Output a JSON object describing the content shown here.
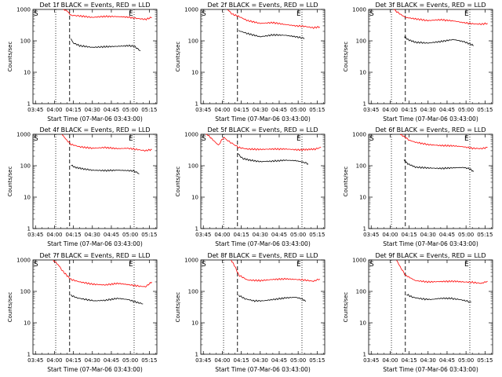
{
  "figure": {
    "background": "#ffffff"
  },
  "chart_data": [
    {
      "type": "line",
      "title": "Det 1f BLACK = Events, RED = LLD",
      "xlabel": "Start Time (07-Mar-06 03:43:00)",
      "ylabel": "Counts/sec",
      "yscale": "log",
      "ylim": [
        1,
        1000
      ],
      "x_ticks": [
        "03:45",
        "04:00",
        "04:15",
        "04:30",
        "04:45",
        "05:00",
        "05:15"
      ],
      "y_ticks": [
        "1",
        "10",
        "100",
        "1000"
      ],
      "markers": {
        "S": "S",
        "E": "E"
      },
      "series": [
        {
          "name": "LLD",
          "color": "#ff0000",
          "points": [
            [
              "04:07",
              1000
            ],
            [
              "04:10",
              900
            ],
            [
              "04:13",
              650
            ],
            [
              "04:20",
              620
            ],
            [
              "04:30",
              560
            ],
            [
              "04:40",
              600
            ],
            [
              "04:50",
              590
            ],
            [
              "04:58",
              570
            ],
            [
              "05:05",
              520
            ],
            [
              "05:12",
              480
            ],
            [
              "05:17",
              560
            ]
          ]
        },
        {
          "name": "Events",
          "color": "#000000",
          "points": [
            [
              "04:13",
              115
            ],
            [
              "04:15",
              85
            ],
            [
              "04:20",
              70
            ],
            [
              "04:30",
              62
            ],
            [
              "04:40",
              65
            ],
            [
              "04:50",
              67
            ],
            [
              "04:58",
              70
            ],
            [
              "05:03",
              68
            ],
            [
              "05:08",
              48
            ]
          ]
        }
      ]
    },
    {
      "type": "line",
      "title": "Det 2f BLACK = Events, RED = LLD",
      "xlabel": "Start Time (07-Mar-06 03:43:00)",
      "ylabel": "Counts/sec",
      "yscale": "log",
      "ylim": [
        1,
        1000
      ],
      "x_ticks": [
        "03:45",
        "04:00",
        "04:15",
        "04:30",
        "04:45",
        "05:00",
        "05:15"
      ],
      "y_ticks": [
        "1",
        "10",
        "100",
        "1000"
      ],
      "markers": {
        "S": "S",
        "E": "E"
      },
      "series": [
        {
          "name": "LLD",
          "color": "#ff0000",
          "points": [
            [
              "04:04",
              1000
            ],
            [
              "04:08",
              700
            ],
            [
              "04:13",
              600
            ],
            [
              "04:20",
              440
            ],
            [
              "04:30",
              360
            ],
            [
              "04:40",
              380
            ],
            [
              "04:50",
              330
            ],
            [
              "04:58",
              300
            ],
            [
              "05:05",
              290
            ],
            [
              "05:12",
              260
            ],
            [
              "05:17",
              280
            ]
          ]
        },
        {
          "name": "Events",
          "color": "#000000",
          "points": [
            [
              "04:13",
              210
            ],
            [
              "04:20",
              170
            ],
            [
              "04:30",
              135
            ],
            [
              "04:40",
              155
            ],
            [
              "04:50",
              150
            ],
            [
              "04:58",
              135
            ],
            [
              "05:05",
              120
            ]
          ]
        }
      ]
    },
    {
      "type": "line",
      "title": "Det 3f BLACK = Events, RED = LLD",
      "xlabel": "Start Time (07-Mar-06 03:43:00)",
      "ylabel": "Counts/sec",
      "yscale": "log",
      "ylim": [
        1,
        1000
      ],
      "x_ticks": [
        "03:45",
        "04:00",
        "04:15",
        "04:30",
        "04:45",
        "05:00",
        "05:15"
      ],
      "y_ticks": [
        "1",
        "10",
        "100",
        "1000"
      ],
      "markers": {
        "S": "S",
        "E": "E"
      },
      "series": [
        {
          "name": "LLD",
          "color": "#ff0000",
          "points": [
            [
              "04:03",
              1000
            ],
            [
              "04:07",
              750
            ],
            [
              "04:12",
              560
            ],
            [
              "04:20",
              500
            ],
            [
              "04:30",
              440
            ],
            [
              "04:40",
              470
            ],
            [
              "04:50",
              430
            ],
            [
              "04:58",
              380
            ],
            [
              "05:05",
              350
            ],
            [
              "05:12",
              340
            ],
            [
              "05:17",
              360
            ]
          ]
        },
        {
          "name": "Events",
          "color": "#000000",
          "points": [
            [
              "04:11",
              140
            ],
            [
              "04:14",
              110
            ],
            [
              "04:20",
              90
            ],
            [
              "04:30",
              85
            ],
            [
              "04:40",
              95
            ],
            [
              "04:50",
              110
            ],
            [
              "04:58",
              95
            ],
            [
              "05:03",
              80
            ],
            [
              "05:06",
              70
            ]
          ]
        }
      ]
    },
    {
      "type": "line",
      "title": "Det 4f BLACK = Events, RED = LLD",
      "xlabel": "Start Time (07-Mar-06 03:43:00)",
      "ylabel": "Counts/sec",
      "yscale": "log",
      "ylim": [
        1,
        1000
      ],
      "x_ticks": [
        "03:45",
        "04:00",
        "04:15",
        "04:30",
        "04:45",
        "05:00",
        "05:15"
      ],
      "y_ticks": [
        "1",
        "10",
        "100",
        "1000"
      ],
      "markers": {
        "S": "S",
        "E": "E"
      },
      "series": [
        {
          "name": "LLD",
          "color": "#ff0000",
          "points": [
            [
              "04:06",
              1000
            ],
            [
              "04:09",
              700
            ],
            [
              "04:13",
              480
            ],
            [
              "04:20",
              400
            ],
            [
              "04:30",
              360
            ],
            [
              "04:40",
              380
            ],
            [
              "04:50",
              350
            ],
            [
              "04:58",
              360
            ],
            [
              "05:05",
              330
            ],
            [
              "05:12",
              300
            ],
            [
              "05:17",
              330
            ]
          ]
        },
        {
          "name": "Events",
          "color": "#000000",
          "points": [
            [
              "04:13",
              105
            ],
            [
              "04:16",
              90
            ],
            [
              "04:22",
              80
            ],
            [
              "04:30",
              72
            ],
            [
              "04:40",
              70
            ],
            [
              "04:50",
              72
            ],
            [
              "04:58",
              70
            ],
            [
              "05:03",
              68
            ],
            [
              "05:07",
              55
            ]
          ]
        }
      ]
    },
    {
      "type": "line",
      "title": "Det 5f BLACK = Events, RED = LLD",
      "xlabel": "Start Time (07-Mar-06 03:43:00)",
      "ylabel": "Counts/sec",
      "yscale": "log",
      "ylim": [
        1,
        1000
      ],
      "x_ticks": [
        "03:45",
        "04:00",
        "04:15",
        "04:30",
        "04:45",
        "05:00",
        "05:15"
      ],
      "y_ticks": [
        "1",
        "10",
        "100",
        "1000"
      ],
      "markers": {
        "S": "S",
        "E": "E"
      },
      "series": [
        {
          "name": "LLD",
          "color": "#ff0000",
          "points": [
            [
              "03:47",
              1100
            ],
            [
              "03:52",
              700
            ],
            [
              "03:57",
              450
            ],
            [
              "04:01",
              800
            ],
            [
              "04:05",
              600
            ],
            [
              "04:09",
              480
            ],
            [
              "04:13",
              380
            ],
            [
              "04:20",
              340
            ],
            [
              "04:30",
              330
            ],
            [
              "04:40",
              340
            ],
            [
              "04:50",
              340
            ],
            [
              "05:00",
              320
            ],
            [
              "05:08",
              330
            ],
            [
              "05:14",
              340
            ],
            [
              "05:18",
              390
            ]
          ]
        },
        {
          "name": "Events",
          "color": "#000000",
          "points": [
            [
              "04:12",
              250
            ],
            [
              "04:16",
              170
            ],
            [
              "04:22",
              150
            ],
            [
              "04:30",
              135
            ],
            [
              "04:40",
              140
            ],
            [
              "04:50",
              150
            ],
            [
              "04:58",
              145
            ],
            [
              "05:04",
              130
            ],
            [
              "05:08",
              115
            ]
          ]
        }
      ]
    },
    {
      "type": "line",
      "title": "Det 6f BLACK = Events, RED = LLD",
      "xlabel": "Start Time (07-Mar-06 03:43:00)",
      "ylabel": "Counts/sec",
      "yscale": "log",
      "ylim": [
        1,
        1000
      ],
      "x_ticks": [
        "03:45",
        "04:00",
        "04:15",
        "04:30",
        "04:45",
        "05:00",
        "05:15"
      ],
      "y_ticks": [
        "1",
        "10",
        "100",
        "1000"
      ],
      "markers": {
        "S": "S",
        "E": "E"
      },
      "series": [
        {
          "name": "LLD",
          "color": "#ff0000",
          "points": [
            [
              "04:08",
              1000
            ],
            [
              "04:11",
              850
            ],
            [
              "04:15",
              650
            ],
            [
              "04:20",
              560
            ],
            [
              "04:30",
              470
            ],
            [
              "04:40",
              440
            ],
            [
              "04:50",
              430
            ],
            [
              "04:58",
              400
            ],
            [
              "05:05",
              360
            ],
            [
              "05:12",
              350
            ],
            [
              "05:17",
              380
            ]
          ]
        },
        {
          "name": "Events",
          "color": "#000000",
          "points": [
            [
              "04:11",
              150
            ],
            [
              "04:14",
              115
            ],
            [
              "04:20",
              90
            ],
            [
              "04:30",
              85
            ],
            [
              "04:40",
              82
            ],
            [
              "04:50",
              86
            ],
            [
              "04:58",
              88
            ],
            [
              "05:03",
              80
            ],
            [
              "05:06",
              65
            ]
          ]
        }
      ]
    },
    {
      "type": "line",
      "title": "Det 7f BLACK = Events, RED = LLD",
      "xlabel": "Start Time (07-Mar-06 03:43:00)",
      "ylabel": "Counts/sec",
      "yscale": "log",
      "ylim": [
        1,
        1000
      ],
      "x_ticks": [
        "03:45",
        "04:00",
        "04:15",
        "04:30",
        "04:45",
        "05:00",
        "05:15"
      ],
      "y_ticks": [
        "1",
        "10",
        "100",
        "1000"
      ],
      "markers": {
        "S": "S",
        "E": "E"
      },
      "series": [
        {
          "name": "LLD",
          "color": "#ff0000",
          "points": [
            [
              "03:59",
              1000
            ],
            [
              "04:03",
              700
            ],
            [
              "04:07",
              420
            ],
            [
              "04:13",
              240
            ],
            [
              "04:20",
              200
            ],
            [
              "04:30",
              170
            ],
            [
              "04:40",
              160
            ],
            [
              "04:50",
              180
            ],
            [
              "04:58",
              165
            ],
            [
              "05:05",
              150
            ],
            [
              "05:12",
              140
            ],
            [
              "05:17",
              200
            ]
          ]
        },
        {
          "name": "Events",
          "color": "#000000",
          "points": [
            [
              "04:13",
              75
            ],
            [
              "04:18",
              62
            ],
            [
              "04:25",
              55
            ],
            [
              "04:32",
              50
            ],
            [
              "04:40",
              52
            ],
            [
              "04:50",
              60
            ],
            [
              "04:58",
              55
            ],
            [
              "05:05",
              45
            ],
            [
              "05:10",
              40
            ]
          ]
        }
      ]
    },
    {
      "type": "line",
      "title": "Det 8f BLACK = Events, RED = LLD",
      "xlabel": "Start Time (07-Mar-06 03:43:00)",
      "ylabel": "Counts/sec",
      "yscale": "log",
      "ylim": [
        1,
        1000
      ],
      "x_ticks": [
        "03:45",
        "04:00",
        "04:15",
        "04:30",
        "04:45",
        "05:00",
        "05:15"
      ],
      "y_ticks": [
        "1",
        "10",
        "100",
        "1000"
      ],
      "markers": {
        "S": "S",
        "E": "E"
      },
      "series": [
        {
          "name": "LLD",
          "color": "#ff0000",
          "points": [
            [
              "04:07",
              1000
            ],
            [
              "04:10",
              620
            ],
            [
              "04:13",
              330
            ],
            [
              "04:20",
              230
            ],
            [
              "04:30",
              220
            ],
            [
              "04:40",
              240
            ],
            [
              "04:50",
              250
            ],
            [
              "04:58",
              240
            ],
            [
              "05:05",
              230
            ],
            [
              "05:12",
              210
            ],
            [
              "05:17",
              250
            ]
          ]
        },
        {
          "name": "Events",
          "color": "#000000",
          "points": [
            [
              "04:13",
              75
            ],
            [
              "04:18",
              58
            ],
            [
              "04:25",
              50
            ],
            [
              "04:32",
              50
            ],
            [
              "04:40",
              55
            ],
            [
              "04:50",
              62
            ],
            [
              "04:58",
              65
            ],
            [
              "05:03",
              58
            ],
            [
              "05:06",
              48
            ]
          ]
        }
      ]
    },
    {
      "type": "line",
      "title": "Det 9f BLACK = Events, RED = LLD",
      "xlabel": "Start Time (07-Mar-06 03:43:00)",
      "ylabel": "Counts/sec",
      "yscale": "log",
      "ylim": [
        1,
        1000
      ],
      "x_ticks": [
        "03:45",
        "04:00",
        "04:15",
        "04:30",
        "04:45",
        "05:00",
        "05:15"
      ],
      "y_ticks": [
        "1",
        "10",
        "100",
        "1000"
      ],
      "markers": {
        "S": "S",
        "E": "E"
      },
      "series": [
        {
          "name": "LLD",
          "color": "#ff0000",
          "points": [
            [
              "04:05",
              1000
            ],
            [
              "04:08",
              600
            ],
            [
              "04:12",
              330
            ],
            [
              "04:20",
              220
            ],
            [
              "04:30",
              200
            ],
            [
              "04:40",
              205
            ],
            [
              "04:50",
              210
            ],
            [
              "04:58",
              200
            ],
            [
              "05:05",
              195
            ],
            [
              "05:12",
              180
            ],
            [
              "05:17",
              210
            ]
          ]
        },
        {
          "name": "Events",
          "color": "#000000",
          "points": [
            [
              "04:13",
              80
            ],
            [
              "04:18",
              65
            ],
            [
              "04:25",
              58
            ],
            [
              "04:32",
              55
            ],
            [
              "04:40",
              60
            ],
            [
              "04:48",
              60
            ],
            [
              "04:55",
              55
            ],
            [
              "05:00",
              50
            ],
            [
              "05:04",
              45
            ]
          ]
        }
      ]
    }
  ]
}
